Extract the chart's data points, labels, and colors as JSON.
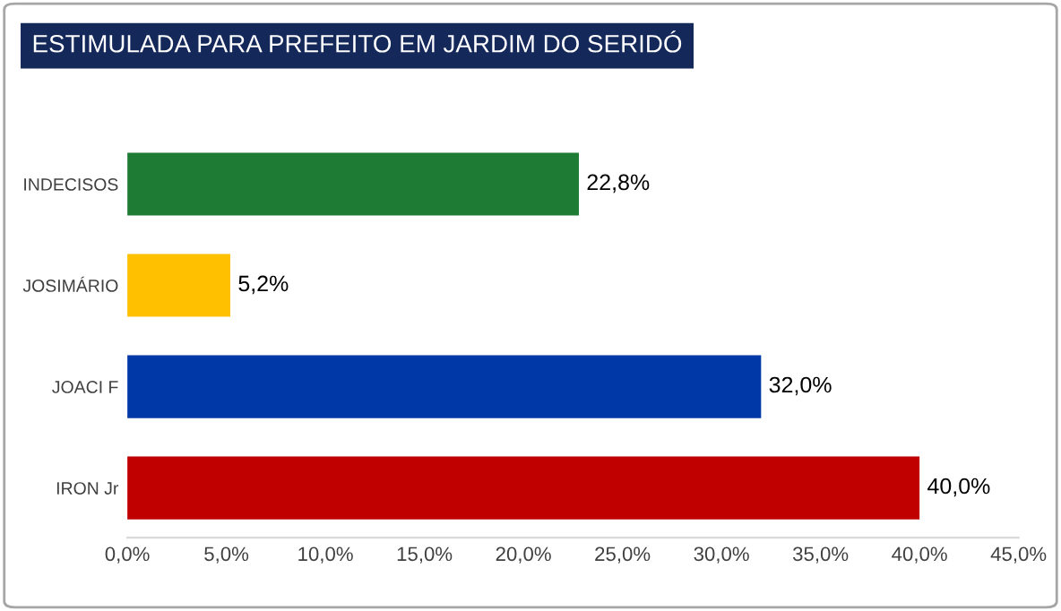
{
  "chart_data": {
    "type": "bar",
    "orientation": "horizontal",
    "title": "ESTIMULADA PARA PREFEITO EM JARDIM DO SERIDÓ",
    "categories": [
      "INDECISOS",
      "JOSIMÁRIO",
      "JOACI F",
      "IRON Jr"
    ],
    "values": [
      22.8,
      5.2,
      32.0,
      40.0
    ],
    "colors": [
      "#1e7b34",
      "#ffc000",
      "#0038a8",
      "#c00000"
    ],
    "value_labels": [
      "22,8%",
      "5,2%",
      "32,0%",
      "40,0%"
    ],
    "xlim": [
      0,
      45
    ],
    "xticks": [
      {
        "value": 0,
        "label": "0,0%"
      },
      {
        "value": 5,
        "label": "5,0%"
      },
      {
        "value": 10,
        "label": "10,0%"
      },
      {
        "value": 15,
        "label": "15,0%"
      },
      {
        "value": 20,
        "label": "20,0%"
      },
      {
        "value": 25,
        "label": "25,0%"
      },
      {
        "value": 30,
        "label": "30,0%"
      },
      {
        "value": 35,
        "label": "35,0%"
      },
      {
        "value": 40,
        "label": "40,0%"
      },
      {
        "value": 45,
        "label": "45,0%"
      }
    ],
    "grid": false,
    "legend": false
  }
}
